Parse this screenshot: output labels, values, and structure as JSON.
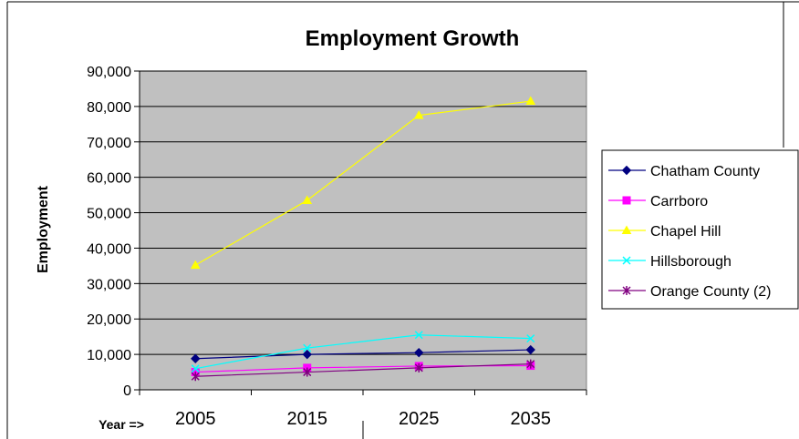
{
  "chart_data": {
    "type": "line",
    "title": "Employment Growth",
    "xlabel": "Year =>",
    "ylabel": "Employment",
    "categories": [
      "2005",
      "2015",
      "2025",
      "2035"
    ],
    "yticks": [
      "0",
      "10,000",
      "20,000",
      "30,000",
      "40,000",
      "50,000",
      "60,000",
      "70,000",
      "80,000",
      "90,000"
    ],
    "ylim": [
      0,
      90000
    ],
    "grid": true,
    "legend_position": "right",
    "plot_background": "#c0c0c0",
    "series": [
      {
        "name": "Chatham County",
        "color": "#000080",
        "marker": "diamond",
        "values": [
          8800,
          10000,
          10500,
          11300
        ]
      },
      {
        "name": "Carrboro",
        "color": "#ff00ff",
        "marker": "square",
        "values": [
          5000,
          6200,
          6700,
          6800
        ]
      },
      {
        "name": "Chapel Hill",
        "color": "#ffff00",
        "marker": "triangle",
        "values": [
          35200,
          53500,
          77500,
          81500
        ]
      },
      {
        "name": "Hillsborough",
        "color": "#00ffff",
        "marker": "x",
        "values": [
          6000,
          11800,
          15500,
          14500
        ]
      },
      {
        "name": "Orange County (2)",
        "color": "#800080",
        "marker": "asterisk",
        "values": [
          3800,
          5000,
          6200,
          7300
        ]
      }
    ]
  }
}
